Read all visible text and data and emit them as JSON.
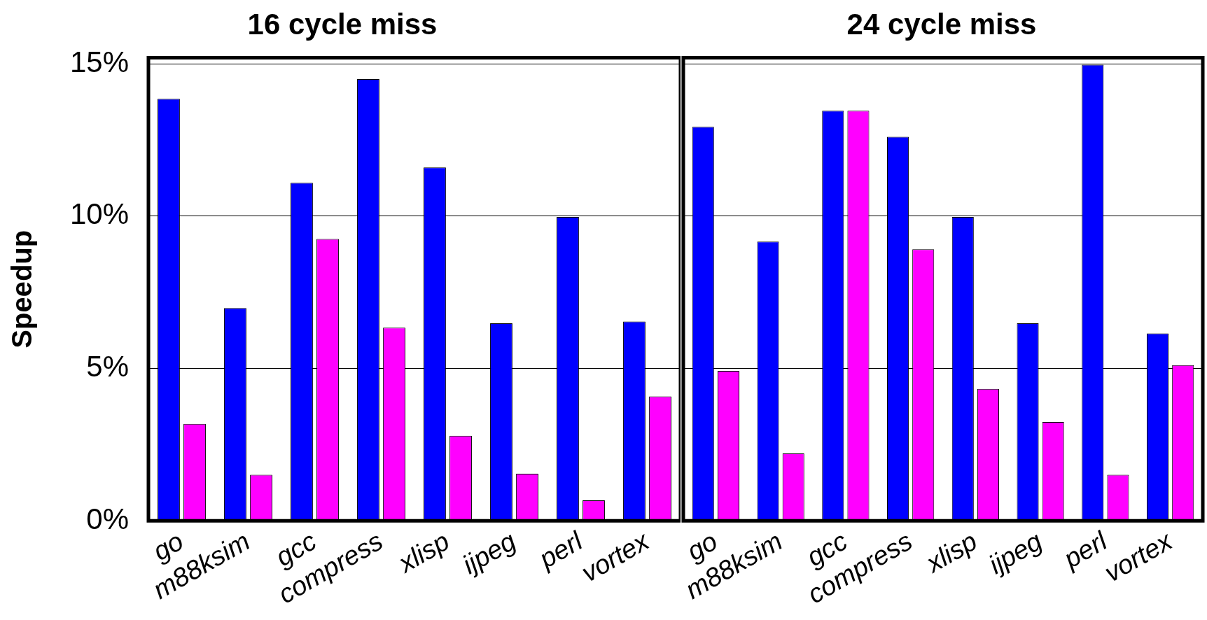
{
  "chart_data": [
    {
      "type": "bar",
      "title": "16 cycle miss",
      "ylabel": "Speedup",
      "categories": [
        "go",
        "m88ksim",
        "gcc",
        "compress",
        "xlisp",
        "ijpeg",
        "perl",
        "vortex"
      ],
      "series": [
        {
          "color": "#0000ff",
          "values": [
            13.85,
            6.98,
            11.09,
            14.5,
            11.6,
            6.48,
            9.97,
            6.54
          ]
        },
        {
          "color": "#ff00ff",
          "values": [
            3.18,
            1.51,
            9.25,
            6.34,
            2.79,
            1.54,
            0.67,
            4.08
          ]
        }
      ],
      "ylim": [
        0,
        15.2
      ],
      "yticks": [
        {
          "value": 0,
          "label": "0%"
        },
        {
          "value": 5,
          "label": "5%"
        },
        {
          "value": 10,
          "label": "10%"
        },
        {
          "value": 15,
          "label": "15%"
        }
      ],
      "grid": "y",
      "legend": false
    },
    {
      "type": "bar",
      "title": "24 cycle miss",
      "categories": [
        "go",
        "m88ksim",
        "gcc",
        "compress",
        "xlisp",
        "ijpeg",
        "perl",
        "vortex"
      ],
      "series": [
        {
          "color": "#0000ff",
          "values": [
            12.93,
            9.16,
            13.46,
            12.6,
            9.97,
            6.48,
            14.97,
            6.15
          ]
        },
        {
          "color": "#ff00ff",
          "values": [
            4.92,
            2.21,
            13.46,
            8.91,
            4.33,
            3.24,
            1.51,
            5.11
          ]
        }
      ],
      "ylim": [
        0,
        15.2
      ],
      "yticks": [
        0,
        5,
        10,
        15
      ],
      "grid": "y",
      "legend": false,
      "tick_labels": "x"
    }
  ]
}
